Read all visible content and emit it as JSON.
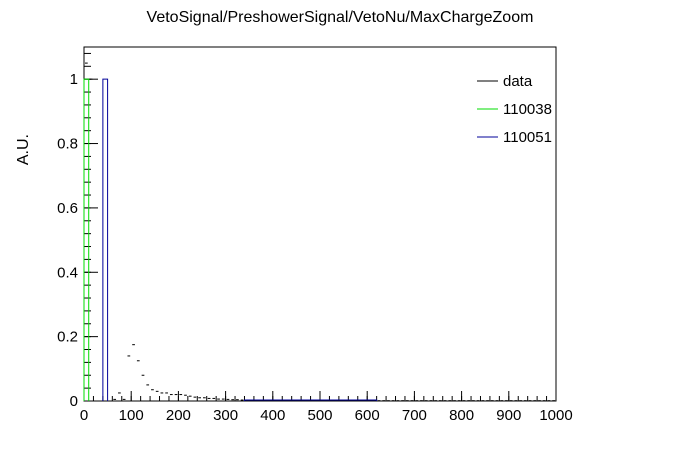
{
  "chart_data": {
    "type": "histogram",
    "title": "VetoSignal/PreshowerSignal/VetoNu/MaxChargeZoom",
    "xlabel": "",
    "ylabel": "A.U.",
    "xlim": [
      0,
      1000
    ],
    "ylim": [
      0,
      1.1
    ],
    "bin_width": 10,
    "x_ticks": [
      0,
      100,
      200,
      300,
      400,
      500,
      600,
      700,
      800,
      900,
      1000
    ],
    "x_tick_labels": [
      "0",
      "100",
      "200",
      "300",
      "400",
      "500",
      "600",
      "700",
      "800",
      "900",
      "1000"
    ],
    "y_ticks": [
      0,
      0.2,
      0.4,
      0.6,
      0.8,
      1
    ],
    "y_tick_labels": [
      "0",
      "0.2",
      "0.4",
      "0.6",
      "0.8",
      "1"
    ],
    "grid": false,
    "legend_position": "top-right",
    "series": [
      {
        "name": "data",
        "style": "markers",
        "color": "#000000",
        "bins": [
          [
            5,
            1.05
          ],
          [
            15,
            1.0
          ],
          [
            25,
            0.0
          ],
          [
            35,
            0.0
          ],
          [
            45,
            0.0
          ],
          [
            55,
            0.0
          ],
          [
            65,
            0.005
          ],
          [
            75,
            0.025
          ],
          [
            85,
            0.005
          ],
          [
            95,
            0.14
          ],
          [
            105,
            0.175
          ],
          [
            115,
            0.125
          ],
          [
            125,
            0.08
          ],
          [
            135,
            0.05
          ],
          [
            145,
            0.035
          ],
          [
            155,
            0.03
          ],
          [
            165,
            0.025
          ],
          [
            175,
            0.025
          ],
          [
            185,
            0.02
          ],
          [
            195,
            0.02
          ],
          [
            205,
            0.02
          ],
          [
            215,
            0.018
          ],
          [
            225,
            0.015
          ],
          [
            235,
            0.012
          ],
          [
            245,
            0.01
          ],
          [
            255,
            0.01
          ],
          [
            265,
            0.008
          ],
          [
            275,
            0.008
          ],
          [
            285,
            0.006
          ],
          [
            295,
            0.006
          ],
          [
            305,
            0.005
          ],
          [
            315,
            0.004
          ],
          [
            325,
            0.004
          ],
          [
            335,
            0.003
          ],
          [
            345,
            0.003
          ],
          [
            355,
            0.003
          ],
          [
            365,
            0.002
          ],
          [
            375,
            0.002
          ],
          [
            385,
            0.002
          ],
          [
            395,
            0.002
          ],
          [
            405,
            0.002
          ],
          [
            415,
            0.002
          ],
          [
            425,
            0.001
          ],
          [
            435,
            0.001
          ],
          [
            445,
            0.001
          ],
          [
            455,
            0.001
          ],
          [
            465,
            0.001
          ],
          [
            475,
            0.001
          ],
          [
            485,
            0.001
          ],
          [
            495,
            0.001
          ],
          [
            505,
            0.001
          ],
          [
            515,
            0.001
          ],
          [
            525,
            0.001
          ],
          [
            535,
            0.001
          ],
          [
            545,
            0.001
          ],
          [
            555,
            0.001
          ],
          [
            565,
            0.001
          ],
          [
            575,
            0.001
          ],
          [
            585,
            0.001
          ],
          [
            595,
            0.001
          ],
          [
            605,
            0.001
          ],
          [
            615,
            0.001
          ],
          [
            625,
            0.001
          ],
          [
            635,
            0.001
          ],
          [
            645,
            0.001
          ],
          [
            655,
            0.001
          ],
          [
            665,
            0.001
          ],
          [
            675,
            0.001
          ],
          [
            685,
            0.001
          ],
          [
            695,
            0.001
          ],
          [
            705,
            0.001
          ],
          [
            715,
            0.001
          ],
          [
            725,
            0.001
          ],
          [
            735,
            0.001
          ],
          [
            745,
            0.001
          ],
          [
            755,
            0.001
          ],
          [
            765,
            0.001
          ],
          [
            775,
            0.001
          ],
          [
            785,
            0.001
          ],
          [
            795,
            0.001
          ],
          [
            805,
            0.001
          ],
          [
            815,
            0.001
          ],
          [
            825,
            0.001
          ],
          [
            835,
            0.001
          ],
          [
            845,
            0.001
          ],
          [
            855,
            0.001
          ],
          [
            865,
            0.001
          ],
          [
            875,
            0.001
          ],
          [
            885,
            0.001
          ],
          [
            895,
            0.001
          ],
          [
            905,
            0.001
          ],
          [
            915,
            0.001
          ],
          [
            925,
            0.001
          ],
          [
            935,
            0.001
          ],
          [
            945,
            0.001
          ],
          [
            955,
            0.001
          ],
          [
            965,
            0.001
          ],
          [
            975,
            0.001
          ],
          [
            985,
            0.001
          ],
          [
            995,
            0.001
          ]
        ]
      },
      {
        "name": "110038",
        "style": "step",
        "color": "#00dd00",
        "bins": [
          [
            0,
            10,
            1.0
          ]
        ]
      },
      {
        "name": "110051",
        "style": "step",
        "color": "#000099",
        "bins": [
          [
            40,
            50,
            1.0
          ],
          [
            340,
            620,
            0.003
          ]
        ]
      }
    ]
  }
}
